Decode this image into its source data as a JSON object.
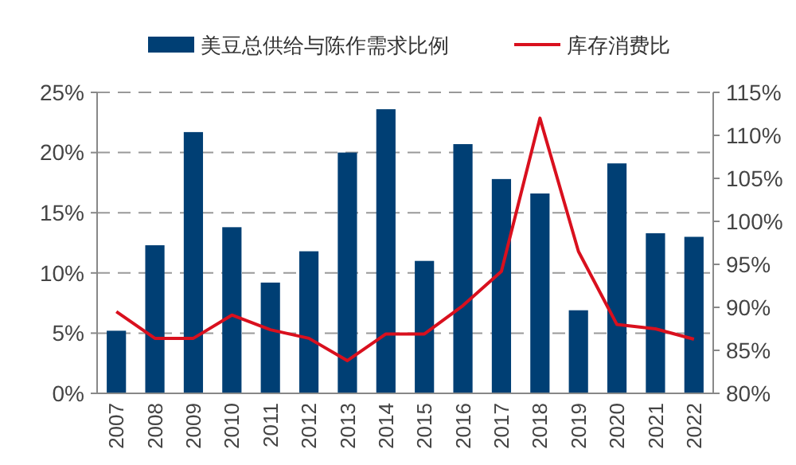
{
  "chart_data": {
    "type": "bar",
    "categories": [
      "2007",
      "2008",
      "2009",
      "2010",
      "2011",
      "2012",
      "2013",
      "2014",
      "2015",
      "2016",
      "2017",
      "2018",
      "2019",
      "2020",
      "2021",
      "2022"
    ],
    "series": [
      {
        "name": "美豆总供给与陈作需求比例",
        "color": "#003f74",
        "values": [
          5.2,
          12.3,
          21.7,
          13.8,
          9.2,
          11.8,
          20.0,
          23.6,
          11.0,
          20.7,
          17.8,
          16.6,
          6.9,
          19.1,
          13.3,
          13.0
        ]
      },
      {
        "name": "库存消费比",
        "type": "line",
        "axis": "y2",
        "color": "#d9101e",
        "values": [
          89.5,
          86.4,
          86.4,
          89.1,
          87.4,
          86.4,
          83.8,
          86.9,
          86.9,
          90.2,
          94.2,
          112.0,
          96.5,
          88.0,
          87.5,
          86.3
        ]
      }
    ],
    "ylim": [
      0,
      25
    ],
    "yticks": [
      {
        "value": 0,
        "label": "0%"
      },
      {
        "value": 5,
        "label": "5%"
      },
      {
        "value": 10,
        "label": "10%"
      },
      {
        "value": 15,
        "label": "15%"
      },
      {
        "value": 20,
        "label": "20%"
      },
      {
        "value": 25,
        "label": "25%"
      }
    ],
    "y2lim": [
      80,
      115
    ],
    "y2ticks": [
      {
        "value": 80,
        "label": "80%"
      },
      {
        "value": 85,
        "label": "85%"
      },
      {
        "value": 90,
        "label": "90%"
      },
      {
        "value": 95,
        "label": "95%"
      },
      {
        "value": 100,
        "label": "100%"
      },
      {
        "value": 105,
        "label": "105%"
      },
      {
        "value": 110,
        "label": "110%"
      },
      {
        "value": 115,
        "label": "115%"
      }
    ],
    "grid": "y",
    "legend": "top"
  }
}
